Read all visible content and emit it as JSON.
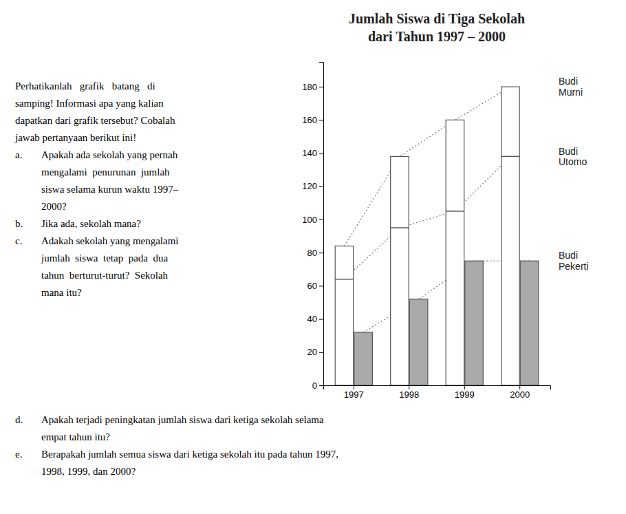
{
  "chart_data": {
    "type": "bar",
    "title": "Jumlah Siswa di Tiga Sekolah",
    "subtitle": "dari Tahun 1997 – 2000",
    "categories": [
      "1997",
      "1998",
      "1999",
      "2000"
    ],
    "series": [
      {
        "name": "Budi Murni",
        "color": "#ffffff",
        "line_style": "dotted",
        "values": [
          84,
          138,
          160,
          180
        ]
      },
      {
        "name": "Budi Utomo",
        "type": "line",
        "marker": "hline",
        "line_style": "dotted",
        "color": "#555555",
        "values": [
          64,
          95,
          105,
          138
        ]
      },
      {
        "name": "Budi Pekerti",
        "color": "#aaaaaa",
        "line_style": "dotted",
        "values": [
          32,
          52,
          75,
          75
        ]
      }
    ],
    "ylim": [
      0,
      195
    ],
    "yticks": [
      0,
      20,
      40,
      60,
      80,
      100,
      120,
      140,
      160,
      180
    ],
    "grid": false,
    "annotations": [
      {
        "lines": [
          "Perhatikanlah   grafik   batang   di",
          "samping! Informasi apa yang kalian",
          "dapatkan dari grafik tersebut? Cobalah",
          "jawab pertanyaan berikut ini!"
        ]
      },
      {
        "label": "a.",
        "lines": [
          "Apakah ada sekolah yang pernah",
          "mengalami  penurunan  jumlah",
          "siswa selama kurun waktu 1997–",
          "2000?"
        ]
      },
      {
        "label": "b.",
        "lines": [
          "Jika ada, sekolah mana?"
        ]
      },
      {
        "label": "c.",
        "lines": [
          "Adakah sekolah yang mengalami",
          "jumlah  siswa  tetap  pada  dua",
          "tahun  berturut-turut?  Sekolah",
          "mana itu?"
        ]
      },
      {
        "label": "d.",
        "lines": [
          "Apakah terjadi peningkatan jumlah siswa dari ketiga sekolah selama",
          "empat tahun itu?"
        ]
      },
      {
        "label": "e.",
        "lines": [
          "Berapakah jumlah semua siswa dari ketiga sekolah itu pada tahun 1997,",
          "1998, 1999, dan 2000?"
        ]
      }
    ]
  }
}
